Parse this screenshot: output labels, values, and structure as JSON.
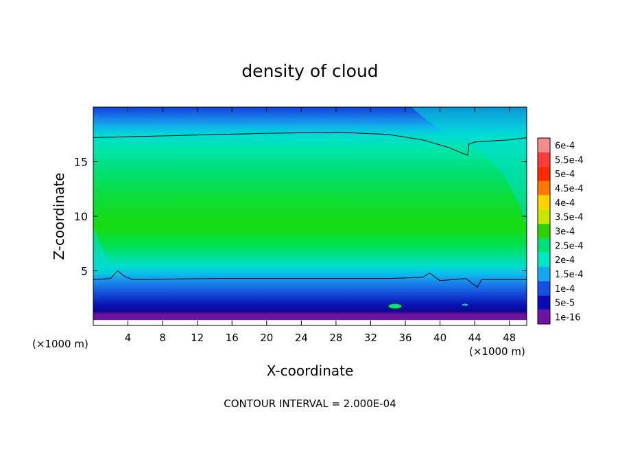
{
  "chart_data": {
    "type": "heatmap",
    "title": "density of cloud",
    "xlabel": "X-coordinate",
    "ylabel": "Z-coordinate",
    "x_unit_left": "(×1000 m)",
    "x_unit_right": "(×1000 m)",
    "xlim": [
      0,
      50
    ],
    "ylim": [
      0,
      20
    ],
    "x_ticks": [
      4,
      8,
      12,
      16,
      20,
      24,
      28,
      32,
      36,
      40,
      44,
      48
    ],
    "y_ticks": [
      5,
      10,
      15
    ],
    "grid": false,
    "legend": "right",
    "footer": "CONTOUR INTERVAL = 2.000E-04",
    "colorbar": [
      {
        "label": "6e-4",
        "color": "#f58c8c"
      },
      {
        "label": "5.5e-4",
        "color": "#ff3c3c"
      },
      {
        "label": "5e-4",
        "color": "#ff2a00"
      },
      {
        "label": "4.5e-4",
        "color": "#ff7a00"
      },
      {
        "label": "4e-4",
        "color": "#ffd200"
      },
      {
        "label": "3.5e-4",
        "color": "#c8e600"
      },
      {
        "label": "3e-4",
        "color": "#2fd200"
      },
      {
        "label": "2.5e-4",
        "color": "#00e07a"
      },
      {
        "label": "2e-4",
        "color": "#00e6c8"
      },
      {
        "label": "1.5e-4",
        "color": "#14a8f0"
      },
      {
        "label": "1e-4",
        "color": "#1450e6"
      },
      {
        "label": "5e-5",
        "color": "#0a0ab4"
      },
      {
        "label": "1e-16",
        "color": "#6e14a0"
      }
    ],
    "contour_lines": [
      {
        "value": "2e-4",
        "points": [
          [
            0,
            17.2
          ],
          [
            10,
            17.4
          ],
          [
            20,
            17.6
          ],
          [
            28,
            17.7
          ],
          [
            34,
            17.5
          ],
          [
            38,
            17
          ],
          [
            41,
            16.3
          ],
          [
            42.5,
            15.8
          ],
          [
            43.2,
            15.6
          ],
          [
            43.3,
            16.6
          ],
          [
            44,
            16.8
          ],
          [
            48,
            17
          ],
          [
            50,
            17.2
          ]
        ]
      },
      {
        "value": "2e-4",
        "points": [
          [
            0,
            4.2
          ],
          [
            2,
            4.3
          ],
          [
            2.8,
            5
          ],
          [
            3.6,
            4.5
          ],
          [
            4.5,
            4.2
          ],
          [
            14,
            4.3
          ],
          [
            24,
            4.3
          ],
          [
            34,
            4.3
          ],
          [
            38,
            4.4
          ],
          [
            38.8,
            4.8
          ],
          [
            40,
            4.1
          ],
          [
            43,
            4.3
          ],
          [
            44.3,
            3.5
          ],
          [
            44.8,
            4.2
          ],
          [
            46,
            4.2
          ],
          [
            50,
            4.2
          ]
        ]
      }
    ]
  }
}
